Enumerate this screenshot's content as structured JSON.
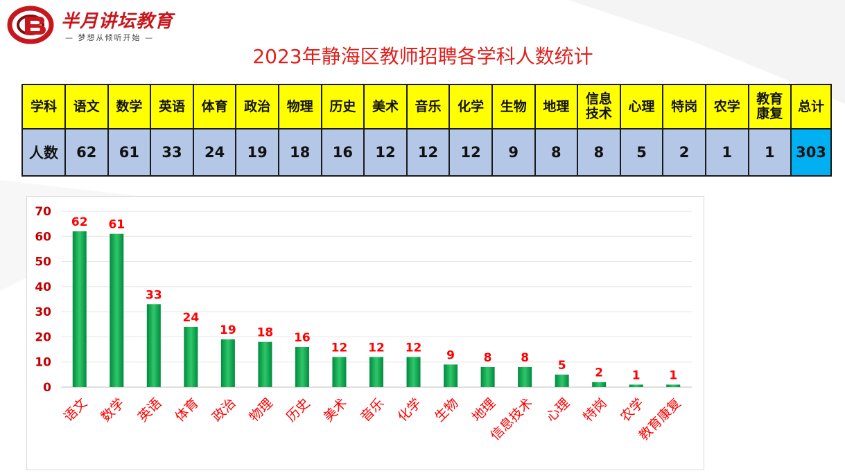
{
  "brand": {
    "name": "半月讲坛教育",
    "slogan": "— 梦想从倾听开始 —",
    "accent_color": "#c8161d"
  },
  "title": "2023年静海区教师招聘各学科人数统计",
  "table": {
    "row_header_subject": "学科",
    "row_header_count": "人数",
    "columns": [
      {
        "subject": "语文",
        "count": "62"
      },
      {
        "subject": "数学",
        "count": "61"
      },
      {
        "subject": "英语",
        "count": "33"
      },
      {
        "subject": "体育",
        "count": "24"
      },
      {
        "subject": "政治",
        "count": "19"
      },
      {
        "subject": "物理",
        "count": "18"
      },
      {
        "subject": "历史",
        "count": "16"
      },
      {
        "subject": "美术",
        "count": "12"
      },
      {
        "subject": "音乐",
        "count": "12"
      },
      {
        "subject": "化学",
        "count": "12"
      },
      {
        "subject": "生物",
        "count": "9"
      },
      {
        "subject": "地理",
        "count": "8"
      },
      {
        "subject": "信息技术",
        "count": "8"
      },
      {
        "subject": "心理",
        "count": "5"
      },
      {
        "subject": "特岗",
        "count": "2"
      },
      {
        "subject": "农学",
        "count": "1"
      },
      {
        "subject": "教育康复",
        "count": "1"
      }
    ],
    "total_label": "总计",
    "total_value": "303",
    "colors": {
      "header_bg": "#ffff00",
      "count_bg": "#b4c7e7",
      "total_bg": "#00b0f0"
    }
  },
  "chart_data": {
    "type": "bar",
    "categories": [
      "语文",
      "数学",
      "英语",
      "体育",
      "政治",
      "物理",
      "历史",
      "美术",
      "音乐",
      "化学",
      "生物",
      "地理",
      "信息技术",
      "心理",
      "特岗",
      "农学",
      "教育康复"
    ],
    "values": [
      62,
      61,
      33,
      24,
      19,
      18,
      16,
      12,
      12,
      12,
      9,
      8,
      8,
      5,
      2,
      1,
      1
    ],
    "ylim": [
      0,
      70
    ],
    "yticks": [
      0,
      10,
      20,
      30,
      40,
      50,
      60,
      70
    ],
    "grid": true,
    "legend": "none",
    "bar_color": "#00a650",
    "label_color": "#ff0000",
    "tick_label_color": "#c00000",
    "category_label_color": "#ff0000"
  }
}
